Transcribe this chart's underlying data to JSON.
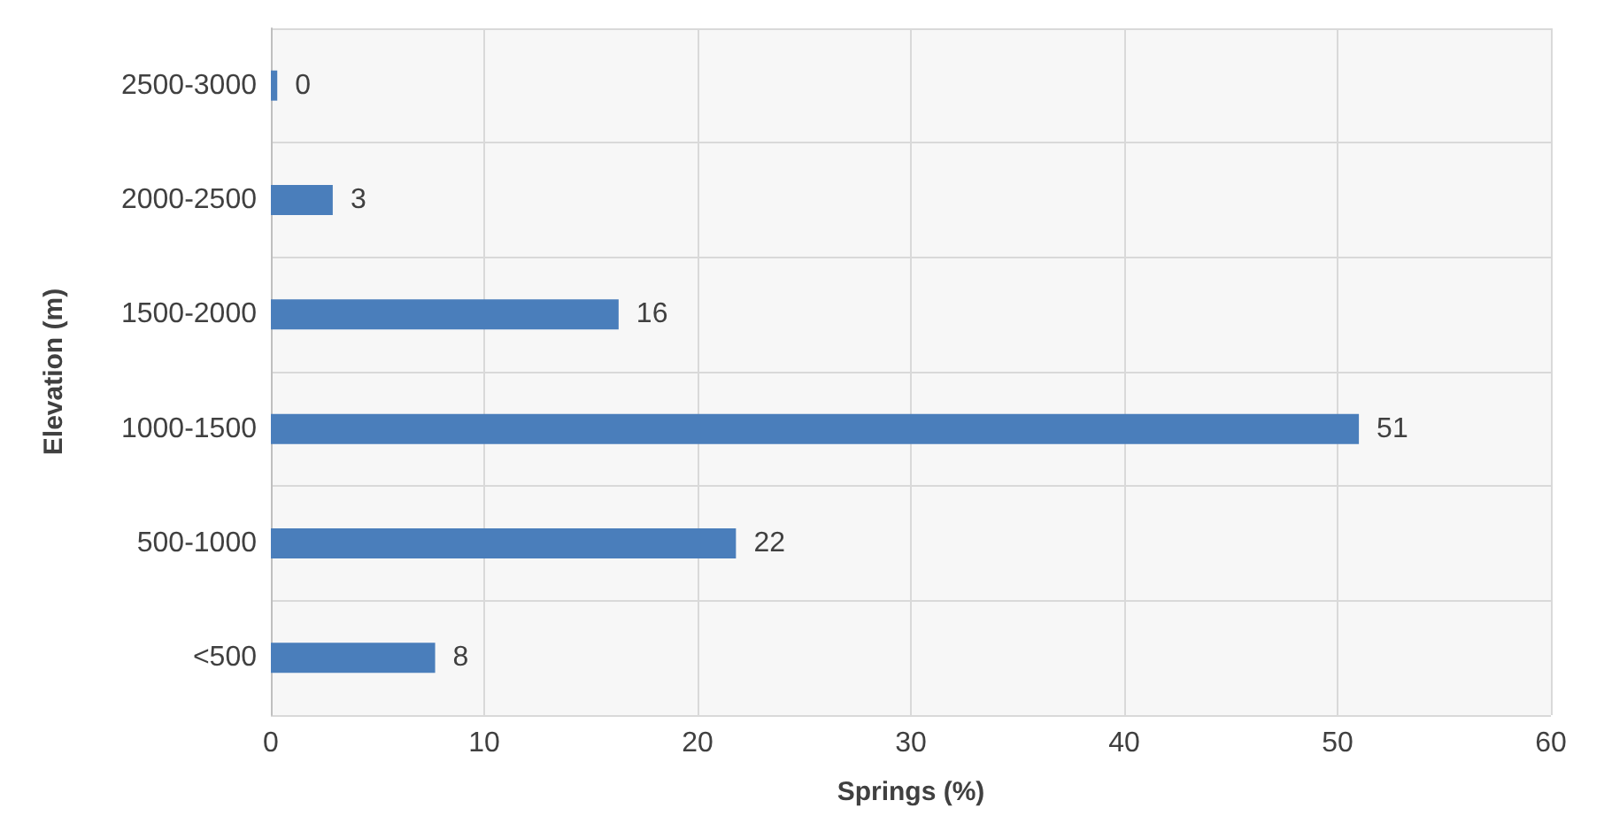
{
  "chart_data": {
    "type": "bar",
    "orientation": "horizontal",
    "xlabel": "Springs (%)",
    "ylabel": "Elevation (m)",
    "categories": [
      "2500-3000",
      "2000-2500",
      "1500-2000",
      "1000-1500",
      "500-1000",
      "<500"
    ],
    "values": [
      0.3,
      2.9,
      16.3,
      51,
      21.8,
      7.7
    ],
    "value_labels": [
      "0",
      "3",
      "16",
      "51",
      "22",
      "8"
    ],
    "color": "#4a7ebb",
    "xlim": [
      0,
      60
    ],
    "xticks": [
      0,
      10,
      20,
      30,
      40,
      50,
      60
    ],
    "grid": true
  }
}
